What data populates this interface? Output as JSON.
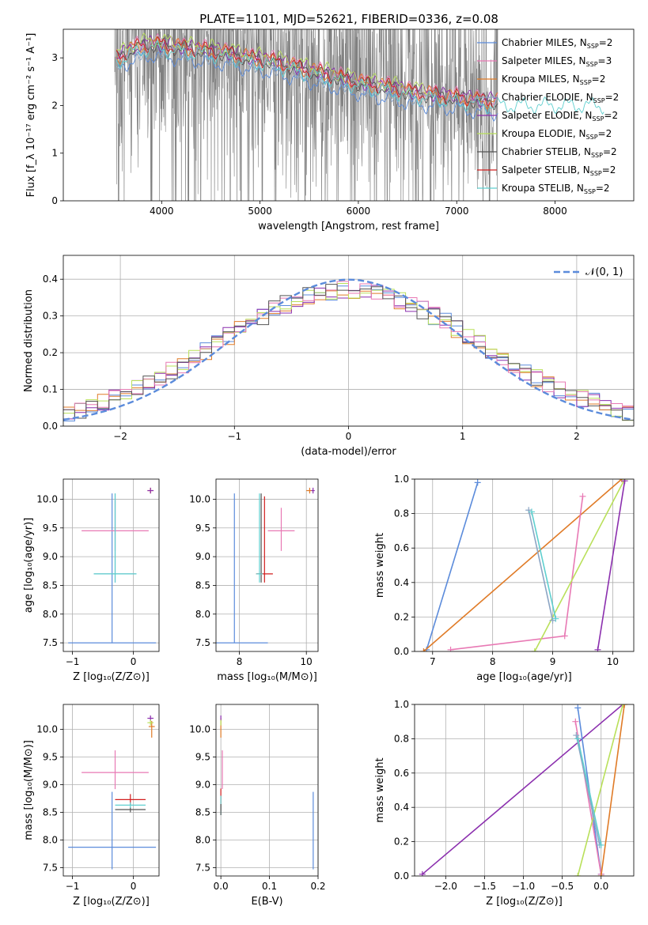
{
  "figure": {
    "title": "PLATE=1101, MJD=52621, FIBERID=0336, z=0.08"
  },
  "colors": {
    "chabrier_miles": "#5b8bdb",
    "salpeter_miles": "#e879b4",
    "kroupa_miles": "#e07b27",
    "chabrier_elodie": "#8ca5c4",
    "salpeter_elodie": "#8b2fae",
    "kroupa_elodie": "#b9e05a",
    "chabrier_stelib": "#555555",
    "salpeter_stelib": "#d11e1e",
    "kroupa_stelib": "#5fcfcf",
    "observed": "#808080",
    "normal": "#5b8bdb"
  },
  "chart_data": [
    {
      "id": "spectrum",
      "type": "line",
      "title": "PLATE=1101, MJD=52621, FIBERID=0336, z=0.08",
      "xlabel": "wavelength [Angstrom, rest frame]",
      "ylabel": "Flux [f_λ 10⁻¹⁷ erg cm⁻² s⁻¹ A⁻¹]",
      "xlim": [
        3000,
        8800
      ],
      "ylim": [
        0,
        3.6
      ],
      "xticks": [
        "4000",
        "5000",
        "6000",
        "7000",
        "8000"
      ],
      "yticks": [
        "0",
        "1",
        "2",
        "3"
      ],
      "legend_position": "right",
      "legend": [
        {
          "imf": "Chabrier",
          "lib": "MILES",
          "n": "2",
          "color": "#5b8bdb"
        },
        {
          "imf": "Salpeter",
          "lib": "MILES",
          "n": "3",
          "color": "#e879b4"
        },
        {
          "imf": "Kroupa",
          "lib": "MILES",
          "n": "2",
          "color": "#e07b27"
        },
        {
          "imf": "Chabrier",
          "lib": "ELODIE",
          "n": "2",
          "color": "#8ca5c4"
        },
        {
          "imf": "Salpeter",
          "lib": "ELODIE",
          "n": "2",
          "color": "#8b2fae"
        },
        {
          "imf": "Kroupa",
          "lib": "ELODIE",
          "n": "2",
          "color": "#b9e05a"
        },
        {
          "imf": "Chabrier",
          "lib": "STELIB",
          "n": "2",
          "color": "#555555"
        },
        {
          "imf": "Salpeter",
          "lib": "STELIB",
          "n": "2",
          "color": "#d11e1e"
        },
        {
          "imf": "Kroupa",
          "lib": "STELIB",
          "n": "2",
          "color": "#5fcfcf"
        }
      ],
      "model_anchors": {
        "x": [
          3550,
          3700,
          3900,
          4100,
          4300,
          4500,
          4700,
          4900,
          5100,
          5300,
          5500,
          5700,
          5900,
          6100,
          6300,
          6500,
          6700,
          6900,
          7100,
          7300
        ],
        "y": [
          3.0,
          3.2,
          3.3,
          3.25,
          3.2,
          3.15,
          3.1,
          3.0,
          2.95,
          2.85,
          2.75,
          2.65,
          2.55,
          2.45,
          2.4,
          2.3,
          2.25,
          2.2,
          2.15,
          2.1
        ]
      }
    },
    {
      "id": "residuals",
      "type": "line",
      "xlabel": "(data-model)/error",
      "ylabel": "Normed distribution",
      "xlim": [
        -2.5,
        2.5
      ],
      "ylim": [
        0,
        0.465
      ],
      "xticks": [
        "−2",
        "−1",
        "0",
        "1",
        "2"
      ],
      "yticks": [
        "0.0",
        "0.1",
        "0.2",
        "0.3",
        "0.4"
      ],
      "grid": true,
      "legend_position": "top-right",
      "legend_label": "𝒩(0, 1)",
      "hist_bin_width": 0.1
    },
    {
      "id": "age_vs_z",
      "type": "scatter",
      "xlabel": "Z [log₁₀(Z/Z⊙)]",
      "ylabel": "age  [log₁₀(age/yr)]",
      "xlim": [
        -1.15,
        0.42
      ],
      "ylim": [
        7.35,
        10.35
      ],
      "xticks": [
        "−1",
        "0"
      ],
      "yticks": [
        "7.5",
        "8.0",
        "8.5",
        "9.0",
        "9.5",
        "10.0"
      ],
      "grid": true,
      "points": [
        {
          "x": -0.35,
          "y": 7.5,
          "xerr": 0.72,
          "yerr": [
            0.0,
            2.6
          ],
          "color": "#5b8bdb"
        },
        {
          "x": -0.3,
          "y": 9.45,
          "xerr": 0.55,
          "yerr": [
            0.35,
            0.55
          ],
          "color": "#e879b4"
        },
        {
          "x": 0.28,
          "y": 10.15,
          "xerr": 0.05,
          "yerr": [
            0.05,
            0.05
          ],
          "color": "#e07b27"
        },
        {
          "x": -0.3,
          "y": 8.7,
          "xerr": 0.35,
          "yerr": [
            0.15,
            1.4
          ],
          "color": "#8ca5c4"
        },
        {
          "x": 0.28,
          "y": 10.15,
          "xerr": 0.05,
          "yerr": [
            0.05,
            0.05
          ],
          "color": "#8b2fae"
        },
        {
          "x": -0.3,
          "y": 8.7,
          "xerr": 0.35,
          "yerr": [
            0.15,
            1.4
          ],
          "color": "#5fcfcf"
        }
      ]
    },
    {
      "id": "age_vs_mass",
      "type": "scatter",
      "xlabel": "mass [log₁₀(M/M⊙)]",
      "ylabel": "",
      "xlim": [
        7.3,
        10.35
      ],
      "ylim": [
        7.35,
        10.35
      ],
      "xticks": [
        "8",
        "10"
      ],
      "yticks": [
        "7.5",
        "8.0",
        "8.5",
        "9.0",
        "9.5",
        "10.0"
      ],
      "grid": true,
      "points": [
        {
          "x": 7.85,
          "y": 7.5,
          "xerr": 1.0,
          "yerr": [
            0.0,
            2.6
          ],
          "color": "#5b8bdb"
        },
        {
          "x": 9.25,
          "y": 9.45,
          "xerr": 0.4,
          "yerr": [
            0.35,
            0.4
          ],
          "color": "#e879b4"
        },
        {
          "x": 10.1,
          "y": 10.15,
          "xerr": 0.1,
          "yerr": [
            0.05,
            0.05
          ],
          "color": "#e07b27"
        },
        {
          "x": 8.65,
          "y": 8.7,
          "xerr": 0.05,
          "yerr": [
            0.15,
            1.4
          ],
          "color": "#555555"
        },
        {
          "x": 8.75,
          "y": 8.7,
          "xerr": 0.25,
          "yerr": [
            0.15,
            1.35
          ],
          "color": "#d11e1e"
        },
        {
          "x": 8.6,
          "y": 8.7,
          "xerr": 0.1,
          "yerr": [
            0.15,
            1.4
          ],
          "color": "#5fcfcf"
        },
        {
          "x": 10.2,
          "y": 10.15,
          "xerr": 0.05,
          "yerr": [
            0.05,
            0.05
          ],
          "color": "#8b2fae"
        }
      ]
    },
    {
      "id": "weight_vs_age",
      "type": "line",
      "xlabel": "age  [log₁₀(age/yr)]",
      "ylabel": "mass weight",
      "xlim": [
        6.7,
        10.35
      ],
      "ylim": [
        0,
        1.0
      ],
      "xticks": [
        "7",
        "8",
        "9",
        "10"
      ],
      "yticks": [
        "0.0",
        "0.2",
        "0.4",
        "0.6",
        "0.8",
        "1.0"
      ],
      "grid": true,
      "series": [
        {
          "color": "#5b8bdb",
          "x": [
            6.9,
            7.75
          ],
          "y": [
            0.01,
            0.98
          ]
        },
        {
          "color": "#e07b27",
          "x": [
            6.85,
            10.15
          ],
          "y": [
            0.0,
            1.0
          ]
        },
        {
          "color": "#e879b4",
          "x": [
            7.3,
            9.2,
            9.5
          ],
          "y": [
            0.01,
            0.09,
            0.9
          ]
        },
        {
          "color": "#b9e05a",
          "x": [
            8.7,
            10.2
          ],
          "y": [
            0.0,
            1.0
          ]
        },
        {
          "color": "#8b2fae",
          "x": [
            9.75,
            10.2
          ],
          "y": [
            0.01,
            0.99
          ]
        },
        {
          "color": "#8ca5c4",
          "x": [
            8.6,
            9.0
          ],
          "y": [
            0.82,
            0.18
          ]
        },
        {
          "color": "#5fcfcf",
          "x": [
            8.65,
            9.05
          ],
          "y": [
            0.81,
            0.19
          ]
        }
      ]
    },
    {
      "id": "mass_vs_z",
      "type": "scatter",
      "xlabel": "Z [log₁₀(Z/Z⊙)]",
      "ylabel": "mass [log₁₀(M/M⊙)]",
      "xlim": [
        -1.15,
        0.42
      ],
      "ylim": [
        7.35,
        10.45
      ],
      "xticks": [
        "−1",
        "0"
      ],
      "yticks": [
        "7.5",
        "8.0",
        "8.5",
        "9.0",
        "9.5",
        "10.0"
      ],
      "grid": true,
      "points": [
        {
          "x": -0.35,
          "y": 7.87,
          "xerr": 0.72,
          "yerr": [
            0.4,
            1.0
          ],
          "color": "#5b8bdb"
        },
        {
          "x": -0.3,
          "y": 9.22,
          "xerr": 0.55,
          "yerr": [
            0.3,
            0.4
          ],
          "color": "#e879b4"
        },
        {
          "x": 0.3,
          "y": 10.05,
          "xerr": 0.05,
          "yerr": [
            0.2,
            0.1
          ],
          "color": "#e07b27"
        },
        {
          "x": 0.28,
          "y": 10.2,
          "xerr": 0.05,
          "yerr": [
            0.05,
            0.05
          ],
          "color": "#8b2fae"
        },
        {
          "x": 0.28,
          "y": 10.12,
          "xerr": 0.05,
          "yerr": [
            0.05,
            0.05
          ],
          "color": "#b9e05a"
        },
        {
          "x": -0.05,
          "y": 8.55,
          "xerr": 0.25,
          "yerr": [
            0.05,
            0.05
          ],
          "color": "#555555"
        },
        {
          "x": -0.05,
          "y": 8.73,
          "xerr": 0.25,
          "yerr": [
            0.1,
            0.1
          ],
          "color": "#d11e1e"
        },
        {
          "x": -0.05,
          "y": 8.63,
          "xerr": 0.25,
          "yerr": [
            0.05,
            0.05
          ],
          "color": "#5fcfcf"
        }
      ]
    },
    {
      "id": "mass_vs_ebv",
      "type": "scatter",
      "xlabel": "E(B-V)",
      "ylabel": "",
      "xlim": [
        -0.01,
        0.2
      ],
      "ylim": [
        7.35,
        10.45
      ],
      "xticks": [
        "0.0",
        "0.1",
        "0.2"
      ],
      "yticks": [
        "7.5",
        "8.0",
        "8.5",
        "9.0",
        "9.5",
        "10.0"
      ],
      "grid": true,
      "points": [
        {
          "x": 0.19,
          "y": 7.87,
          "xerr": 0.0,
          "yerr": [
            0.4,
            1.0
          ],
          "color": "#5b8bdb"
        },
        {
          "x": 0.003,
          "y": 9.22,
          "xerr": 0.0,
          "yerr": [
            0.3,
            0.4
          ],
          "color": "#e879b4"
        },
        {
          "x": 0.0,
          "y": 10.05,
          "xerr": 0.0,
          "yerr": [
            0.2,
            0.15
          ],
          "color": "#e07b27"
        },
        {
          "x": 0.0,
          "y": 10.2,
          "xerr": 0.0,
          "yerr": [
            0.05,
            0.05
          ],
          "color": "#8b2fae"
        },
        {
          "x": 0.0,
          "y": 10.12,
          "xerr": 0.0,
          "yerr": [
            0.05,
            0.05
          ],
          "color": "#b9e05a"
        },
        {
          "x": 0.0,
          "y": 8.73,
          "xerr": 0.0,
          "yerr": [
            0.2,
            0.2
          ],
          "color": "#d11e1e"
        },
        {
          "x": 0.0,
          "y": 8.6,
          "xerr": 0.0,
          "yerr": [
            0.15,
            0.2
          ],
          "color": "#5fcfcf"
        },
        {
          "x": 0.0,
          "y": 8.55,
          "xerr": 0.0,
          "yerr": [
            0.1,
            0.1
          ],
          "color": "#555555"
        }
      ]
    },
    {
      "id": "weight_vs_z",
      "type": "line",
      "xlabel": "Z [log₁₀(Z/Z⊙)]",
      "ylabel": "mass weight",
      "xlim": [
        -2.4,
        0.42
      ],
      "ylim": [
        0,
        1.0
      ],
      "xticks": [
        "−2.0",
        "−1.5",
        "−1.0",
        "−0.5",
        "0.0"
      ],
      "yticks": [
        "0.0",
        "0.2",
        "0.4",
        "0.6",
        "0.8",
        "1.0"
      ],
      "grid": true,
      "series": [
        {
          "color": "#8b2fae",
          "x": [
            -2.3,
            0.28
          ],
          "y": [
            0.01,
            1.0
          ]
        },
        {
          "color": "#5b8bdb",
          "x": [
            -0.3,
            0.0
          ],
          "y": [
            0.98,
            0.01
          ]
        },
        {
          "color": "#e879b4",
          "x": [
            -0.33,
            0.0
          ],
          "y": [
            0.9,
            0.01
          ]
        },
        {
          "color": "#e07b27",
          "x": [
            0.0,
            0.3
          ],
          "y": [
            0.0,
            1.0
          ]
        },
        {
          "color": "#b9e05a",
          "x": [
            -0.3,
            0.28
          ],
          "y": [
            0.0,
            1.0
          ]
        },
        {
          "color": "#8ca5c4",
          "x": [
            -0.32,
            -0.02
          ],
          "y": [
            0.82,
            0.18
          ]
        },
        {
          "color": "#5fcfcf",
          "x": [
            -0.3,
            0.0
          ],
          "y": [
            0.8,
            0.18
          ]
        }
      ]
    }
  ]
}
